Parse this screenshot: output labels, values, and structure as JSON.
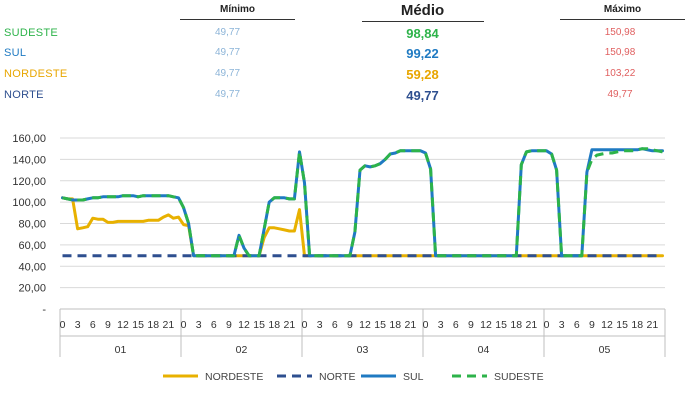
{
  "summary": {
    "headers": {
      "min": "Mínimo",
      "med": "Médio",
      "max": "Máximo"
    },
    "rows": [
      {
        "name": "SUDESTE",
        "color": "#2db34a",
        "min": "49,77",
        "med": "98,84",
        "max": "150,98"
      },
      {
        "name": "SUL",
        "color": "#1f7ac2",
        "min": "49,77",
        "med": "99,22",
        "max": "150,98"
      },
      {
        "name": "NORDESTE",
        "color": "#e8a600",
        "min": "49,77",
        "med": "59,28",
        "max": "103,22"
      },
      {
        "name": "NORTE",
        "color": "#2e4f8f",
        "min": "49,77",
        "med": "49,77",
        "max": "49,77"
      }
    ],
    "min_color": "#8cb4d8",
    "max_color": "#e06060"
  },
  "chart_data": {
    "type": "line",
    "title": "",
    "xlabel": "",
    "ylabel": "",
    "ylim": [
      0,
      160
    ],
    "y_ticks": [
      0,
      20,
      40,
      60,
      80,
      100,
      120,
      140,
      160
    ],
    "y_tick_labels": [
      "-",
      "20,00",
      "40,00",
      "60,00",
      "80,00",
      "100,00",
      "120,00",
      "140,00",
      "160,00"
    ],
    "grid": true,
    "legend_position": "bottom",
    "days": [
      "01",
      "02",
      "03",
      "04",
      "05"
    ],
    "hours_per_day": 24,
    "hour_tick_labels": [
      "0",
      "3",
      "6",
      "9",
      "12",
      "15",
      "18",
      "21"
    ],
    "series": [
      {
        "name": "NORDESTE",
        "color": "#e8b100",
        "dash": "solid",
        "values": [
          104,
          103,
          103,
          75,
          76,
          77,
          85,
          84,
          84,
          81,
          81,
          82,
          82,
          82,
          82,
          82,
          82,
          83,
          83,
          83,
          86,
          88,
          85,
          86,
          79,
          78,
          49.77,
          49.77,
          49.77,
          49.77,
          49.77,
          49.77,
          49.77,
          49.77,
          49.77,
          49.77,
          49.77,
          49.77,
          49.77,
          49.77,
          67,
          76,
          76,
          75,
          74,
          73,
          73,
          93,
          49.77,
          49.77,
          49.77,
          49.77,
          49.77,
          49.77,
          49.77,
          49.77,
          49.77,
          49.77,
          49.77,
          49.77,
          49.77,
          49.77,
          49.77,
          49.77,
          49.77,
          49.77,
          49.77,
          49.77,
          49.77,
          49.77,
          49.77,
          49.77,
          49.77,
          49.77,
          49.77,
          49.77,
          49.77,
          49.77,
          49.77,
          49.77,
          49.77,
          49.77,
          49.77,
          49.77,
          49.77,
          49.77,
          49.77,
          49.77,
          49.77,
          49.77,
          49.77,
          49.77,
          49.77,
          49.77,
          49.77,
          49.77,
          49.77,
          49.77,
          49.77,
          49.77,
          49.77,
          49.77,
          49.77,
          49.77,
          49.77,
          49.77,
          49.77,
          49.77,
          49.77,
          49.77,
          49.77,
          49.77,
          49.77,
          49.77,
          49.77,
          49.77,
          49.77,
          49.77,
          49.77,
          49.77
        ]
      },
      {
        "name": "NORTE",
        "color": "#2e4f8f",
        "dash": "dashed",
        "values": [
          49.77,
          49.77,
          49.77,
          49.77,
          49.77,
          49.77,
          49.77,
          49.77,
          49.77,
          49.77,
          49.77,
          49.77,
          49.77,
          49.77,
          49.77,
          49.77,
          49.77,
          49.77,
          49.77,
          49.77,
          49.77,
          49.77,
          49.77,
          49.77,
          49.77,
          49.77,
          49.77,
          49.77,
          49.77,
          49.77,
          49.77,
          49.77,
          49.77,
          49.77,
          49.77,
          49.77,
          49.77,
          49.77,
          49.77,
          49.77,
          49.77,
          49.77,
          49.77,
          49.77,
          49.77,
          49.77,
          49.77,
          49.77,
          49.77,
          49.77,
          49.77,
          49.77,
          49.77,
          49.77,
          49.77,
          49.77,
          49.77,
          49.77,
          49.77,
          49.77,
          49.77,
          49.77,
          49.77,
          49.77,
          49.77,
          49.77,
          49.77,
          49.77,
          49.77,
          49.77,
          49.77,
          49.77,
          49.77,
          49.77,
          49.77,
          49.77,
          49.77,
          49.77,
          49.77,
          49.77,
          49.77,
          49.77,
          49.77,
          49.77,
          49.77,
          49.77,
          49.77,
          49.77,
          49.77,
          49.77,
          49.77,
          49.77,
          49.77,
          49.77,
          49.77,
          49.77,
          49.77,
          49.77,
          49.77,
          49.77,
          49.77,
          49.77,
          49.77,
          49.77,
          49.77,
          49.77,
          49.77,
          49.77,
          49.77,
          49.77,
          49.77,
          49.77,
          49.77,
          49.77,
          49.77,
          49.77,
          49.77,
          49.77,
          49.77,
          49.77
        ]
      },
      {
        "name": "SUL",
        "color": "#1f7ac2",
        "dash": "solid",
        "values": [
          104,
          103,
          102,
          102,
          102,
          103,
          104,
          104,
          105,
          105,
          105,
          105,
          106,
          106,
          106,
          105,
          106,
          106,
          106,
          106,
          106,
          106,
          105,
          104,
          95,
          80,
          49.77,
          49.77,
          49.77,
          49.77,
          49.77,
          49.77,
          49.77,
          49.77,
          49.77,
          69,
          57,
          49.77,
          49.77,
          49.77,
          75,
          100,
          104,
          104,
          104,
          103,
          103,
          147,
          118,
          49.77,
          49.77,
          49.77,
          49.77,
          49.77,
          49.77,
          49.77,
          49.77,
          49.77,
          72,
          130,
          134,
          133,
          134,
          136,
          140,
          145,
          146,
          148,
          148,
          148,
          148,
          148,
          146,
          131,
          49.77,
          49.77,
          49.77,
          49.77,
          49.77,
          49.77,
          49.77,
          49.77,
          49.77,
          49.77,
          49.77,
          49.77,
          49.77,
          49.77,
          49.77,
          49.77,
          49.77,
          135,
          147,
          148,
          148,
          148,
          148,
          145,
          130,
          49.77,
          49.77,
          49.77,
          49.77,
          49.77,
          128,
          149,
          149,
          149,
          149,
          149,
          149,
          149,
          149,
          149,
          149,
          150,
          149,
          148,
          148,
          148
        ]
      },
      {
        "name": "SUDESTE",
        "color": "#2db34a",
        "dash": "dashed",
        "values": [
          104,
          103,
          102,
          102,
          102,
          103,
          104,
          104,
          105,
          105,
          105,
          105,
          106,
          106,
          106,
          105,
          106,
          106,
          106,
          106,
          106,
          106,
          105,
          104,
          95,
          80,
          49.77,
          49.77,
          49.77,
          49.77,
          49.77,
          49.77,
          49.77,
          49.77,
          49.77,
          69,
          57,
          49.77,
          49.77,
          49.77,
          75,
          100,
          104,
          104,
          104,
          103,
          103,
          147,
          118,
          49.77,
          49.77,
          49.77,
          49.77,
          49.77,
          49.77,
          49.77,
          49.77,
          49.77,
          72,
          130,
          134,
          133,
          134,
          136,
          140,
          145,
          146,
          148,
          148,
          148,
          148,
          148,
          146,
          131,
          49.77,
          49.77,
          49.77,
          49.77,
          49.77,
          49.77,
          49.77,
          49.77,
          49.77,
          49.77,
          49.77,
          49.77,
          49.77,
          49.77,
          49.77,
          49.77,
          49.77,
          135,
          147,
          148,
          148,
          148,
          148,
          145,
          130,
          49.77,
          49.77,
          49.77,
          49.77,
          49.77,
          128,
          140,
          144,
          145,
          146,
          146,
          147,
          148,
          148,
          148,
          149,
          150,
          150,
          149,
          148,
          147
        ]
      }
    ]
  }
}
